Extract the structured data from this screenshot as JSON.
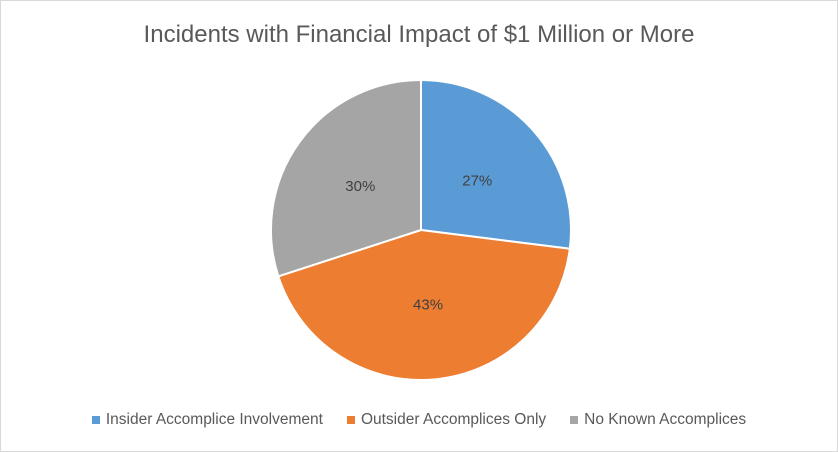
{
  "chart_data": {
    "type": "pie",
    "title": "Incidents with Financial Impact of $1 Million or More",
    "categories": [
      "Insider Accomplice Involvement",
      "Outsider Accomplices Only",
      "No Known Accomplices"
    ],
    "values": [
      27,
      43,
      30
    ],
    "data_labels": [
      "27%",
      "43%",
      "30%"
    ],
    "colors": [
      "#5B9BD5",
      "#ED7D31",
      "#A5A5A5"
    ],
    "legend_position": "bottom"
  }
}
